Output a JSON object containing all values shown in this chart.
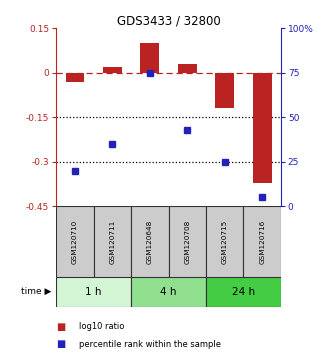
{
  "title": "GDS3433 / 32800",
  "samples": [
    "GSM120710",
    "GSM120711",
    "GSM120648",
    "GSM120708",
    "GSM120715",
    "GSM120716"
  ],
  "log10_ratio": [
    -0.03,
    0.02,
    0.1,
    0.03,
    -0.12,
    -0.37
  ],
  "percentile_rank": [
    20,
    35,
    75,
    43,
    25,
    5
  ],
  "groups": [
    {
      "label": "1 h",
      "indices": [
        0,
        1
      ],
      "color": "#d4f5d4"
    },
    {
      "label": "4 h",
      "indices": [
        2,
        3
      ],
      "color": "#90e090"
    },
    {
      "label": "24 h",
      "indices": [
        4,
        5
      ],
      "color": "#44cc44"
    }
  ],
  "ylim_left": [
    -0.45,
    0.15
  ],
  "ylim_right": [
    0,
    100
  ],
  "yticks_left": [
    0.15,
    0.0,
    -0.15,
    -0.3,
    -0.45
  ],
  "yticks_left_labels": [
    "0.15",
    "0",
    "-0.15",
    "-0.3",
    "-0.45"
  ],
  "yticks_right": [
    100,
    75,
    50,
    25,
    0
  ],
  "yticks_right_labels": [
    "100%",
    "75",
    "50",
    "25",
    "0"
  ],
  "bar_color": "#bb2222",
  "dot_color": "#2222bb",
  "dashed_line_color": "#bb2222",
  "dotted_line_y": [
    -0.15,
    -0.3
  ],
  "bar_width": 0.5,
  "legend_labels": [
    "log10 ratio",
    "percentile rank within the sample"
  ],
  "sample_bg": "#cccccc",
  "time_label": "time"
}
